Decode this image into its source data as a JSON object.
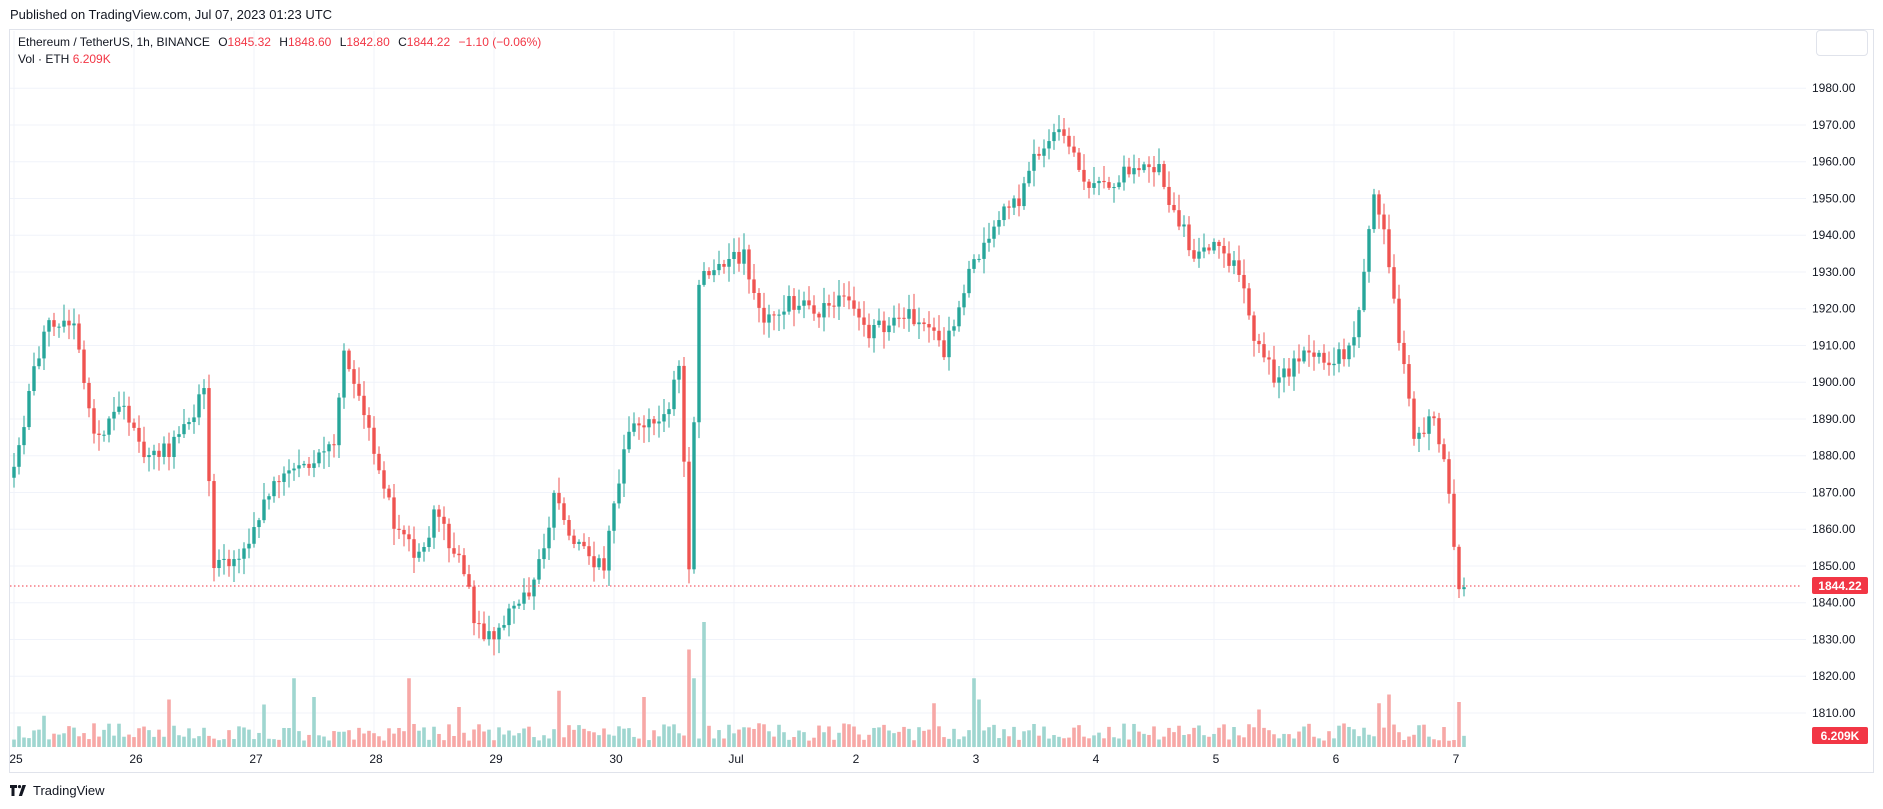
{
  "header": {
    "published": "Published on TradingView.com, Jul 07, 2023 01:23 UTC"
  },
  "legend": {
    "symbol": "Ethereum / TetherUS, 1h, BINANCE",
    "open_label": "O",
    "open": "1845.32",
    "high_label": "H",
    "high": "1848.60",
    "low_label": "L",
    "low": "1842.80",
    "close_label": "C",
    "close": "1844.22",
    "change": "−1.10 (−0.06%)",
    "vol_label": "Vol · ETH",
    "vol_value": "6.209K"
  },
  "brand": {
    "name": "TradingView",
    "icon": "tradingview-logo-icon"
  },
  "colors": {
    "up": "#26a69a",
    "down": "#ef5350",
    "up_vol": "#9fd6d0",
    "down_vol": "#f7a8a6",
    "grid": "#f0f3fa",
    "price_line": "#f23645"
  },
  "chart_data": {
    "type": "candlestick",
    "symbol": "Ethereum / TetherUS",
    "interval": "1h",
    "exchange": "BINANCE",
    "ylim": [
      1815,
      1985
    ],
    "y_ticks": [
      "1810.00",
      "1820.00",
      "1830.00",
      "1840.00",
      "1850.00",
      "1860.00",
      "1870.00",
      "1880.00",
      "1890.00",
      "1900.00",
      "1910.00",
      "1920.00",
      "1930.00",
      "1940.00",
      "1950.00",
      "1960.00",
      "1970.00",
      "1980.00"
    ],
    "x_tick_labels": [
      {
        "label": "25",
        "pos": 0
      },
      {
        "label": "26",
        "pos": 24
      },
      {
        "label": "27",
        "pos": 48
      },
      {
        "label": "28",
        "pos": 72
      },
      {
        "label": "29",
        "pos": 96
      },
      {
        "label": "30",
        "pos": 120
      },
      {
        "label": "Jul",
        "pos": 144
      },
      {
        "label": "2",
        "pos": 168
      },
      {
        "label": "3",
        "pos": 192
      },
      {
        "label": "4",
        "pos": 216
      },
      {
        "label": "5",
        "pos": 240
      },
      {
        "label": "6",
        "pos": 264
      },
      {
        "label": "7",
        "pos": 288
      }
    ],
    "last_price": "1844.22",
    "last_volume": "6.209K",
    "anchors": [
      {
        "i": 0,
        "p": 1876
      },
      {
        "i": 6,
        "p": 1915
      },
      {
        "i": 12,
        "p": 1918
      },
      {
        "i": 16,
        "p": 1885
      },
      {
        "i": 22,
        "p": 1893
      },
      {
        "i": 26,
        "p": 1878
      },
      {
        "i": 31,
        "p": 1882
      },
      {
        "i": 38,
        "p": 1897
      },
      {
        "i": 40,
        "p": 1850
      },
      {
        "i": 46,
        "p": 1853
      },
      {
        "i": 52,
        "p": 1874
      },
      {
        "i": 57,
        "p": 1875
      },
      {
        "i": 64,
        "p": 1882
      },
      {
        "i": 66,
        "p": 1910
      },
      {
        "i": 71,
        "p": 1888
      },
      {
        "i": 76,
        "p": 1862
      },
      {
        "i": 81,
        "p": 1852
      },
      {
        "i": 84,
        "p": 1864
      },
      {
        "i": 90,
        "p": 1850
      },
      {
        "i": 92,
        "p": 1836
      },
      {
        "i": 95,
        "p": 1830
      },
      {
        "i": 104,
        "p": 1844
      },
      {
        "i": 108,
        "p": 1868
      },
      {
        "i": 112,
        "p": 1855
      },
      {
        "i": 118,
        "p": 1850
      },
      {
        "i": 123,
        "p": 1888
      },
      {
        "i": 131,
        "p": 1893
      },
      {
        "i": 133,
        "p": 1906
      },
      {
        "i": 135,
        "p": 1850
      },
      {
        "i": 137,
        "p": 1928
      },
      {
        "i": 146,
        "p": 1935
      },
      {
        "i": 149,
        "p": 1918
      },
      {
        "i": 156,
        "p": 1922
      },
      {
        "i": 161,
        "p": 1920
      },
      {
        "i": 166,
        "p": 1922
      },
      {
        "i": 171,
        "p": 1913
      },
      {
        "i": 177,
        "p": 1918
      },
      {
        "i": 183,
        "p": 1917
      },
      {
        "i": 186,
        "p": 1908
      },
      {
        "i": 191,
        "p": 1930
      },
      {
        "i": 194,
        "p": 1937
      },
      {
        "i": 198,
        "p": 1948
      },
      {
        "i": 201,
        "p": 1950
      },
      {
        "i": 204,
        "p": 1962
      },
      {
        "i": 209,
        "p": 1968
      },
      {
        "i": 214,
        "p": 1955
      },
      {
        "i": 219,
        "p": 1952
      },
      {
        "i": 224,
        "p": 1960
      },
      {
        "i": 229,
        "p": 1958
      },
      {
        "i": 232,
        "p": 1947
      },
      {
        "i": 236,
        "p": 1935
      },
      {
        "i": 241,
        "p": 1938
      },
      {
        "i": 245,
        "p": 1930
      },
      {
        "i": 249,
        "p": 1908
      },
      {
        "i": 253,
        "p": 1900
      },
      {
        "i": 259,
        "p": 1908
      },
      {
        "i": 264,
        "p": 1905
      },
      {
        "i": 268,
        "p": 1912
      },
      {
        "i": 270,
        "p": 1930
      },
      {
        "i": 272,
        "p": 1950
      },
      {
        "i": 274,
        "p": 1942
      },
      {
        "i": 277,
        "p": 1912
      },
      {
        "i": 280,
        "p": 1886
      },
      {
        "i": 284,
        "p": 1890
      },
      {
        "i": 287,
        "p": 1870
      },
      {
        "i": 289,
        "p": 1845
      },
      {
        "i": 290,
        "p": 1844
      }
    ],
    "volume_spikes": [
      {
        "i": 6,
        "v": 0.25
      },
      {
        "i": 31,
        "v": 0.38
      },
      {
        "i": 50,
        "v": 0.34
      },
      {
        "i": 56,
        "v": 0.55
      },
      {
        "i": 60,
        "v": 0.4
      },
      {
        "i": 79,
        "v": 0.55
      },
      {
        "i": 89,
        "v": 0.32
      },
      {
        "i": 109,
        "v": 0.45
      },
      {
        "i": 126,
        "v": 0.4
      },
      {
        "i": 135,
        "v": 0.78
      },
      {
        "i": 136,
        "v": 0.55
      },
      {
        "i": 138,
        "v": 1.0
      },
      {
        "i": 184,
        "v": 0.35
      },
      {
        "i": 192,
        "v": 0.55
      },
      {
        "i": 193,
        "v": 0.38
      },
      {
        "i": 249,
        "v": 0.3
      },
      {
        "i": 273,
        "v": 0.35
      },
      {
        "i": 275,
        "v": 0.42
      },
      {
        "i": 289,
        "v": 0.36
      }
    ]
  }
}
